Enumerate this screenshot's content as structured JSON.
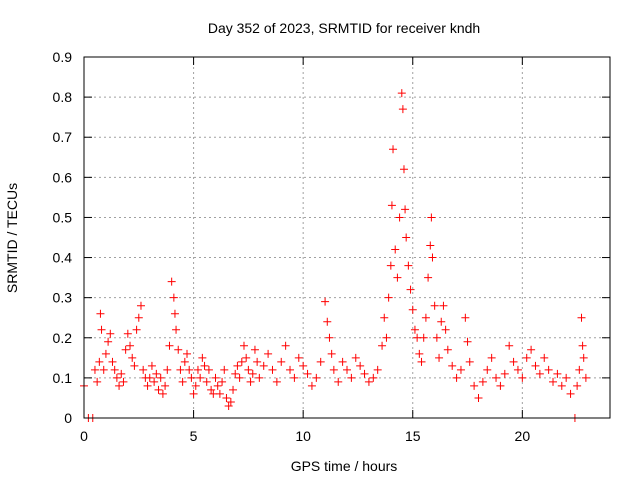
{
  "chart_data": {
    "type": "scatter",
    "title": "Day 352 of 2023, SRMTID for receiver kndh",
    "xlabel": "GPS time / hours",
    "ylabel": "SRMTID / TECUs",
    "xlim": [
      0,
      24
    ],
    "ylim": [
      0,
      0.9
    ],
    "xticks": [
      0,
      5,
      10,
      15,
      20
    ],
    "yticks": [
      0,
      0.1,
      0.2,
      0.3,
      0.4,
      0.5,
      0.6,
      0.7,
      0.8,
      0.9
    ],
    "xtick_labels": [
      "0",
      "5",
      "10",
      "15",
      "20"
    ],
    "ytick_labels": [
      "0",
      "0.1",
      "0.2",
      "0.3",
      "0.4",
      "0.5",
      "0.6",
      "0.7",
      "0.8",
      "0.9"
    ],
    "grid": true,
    "marker": "+",
    "color": "#ff0000",
    "series": [
      {
        "name": "SRMTID",
        "points": [
          [
            0.0,
            0.08
          ],
          [
            0.2,
            0.0
          ],
          [
            0.4,
            0.0
          ],
          [
            0.5,
            0.12
          ],
          [
            0.6,
            0.09
          ],
          [
            0.7,
            0.14
          ],
          [
            0.75,
            0.26
          ],
          [
            0.8,
            0.22
          ],
          [
            0.9,
            0.12
          ],
          [
            1.0,
            0.16
          ],
          [
            1.1,
            0.19
          ],
          [
            1.2,
            0.21
          ],
          [
            1.3,
            0.14
          ],
          [
            1.4,
            0.12
          ],
          [
            1.5,
            0.1
          ],
          [
            1.6,
            0.08
          ],
          [
            1.7,
            0.11
          ],
          [
            1.8,
            0.09
          ],
          [
            1.9,
            0.17
          ],
          [
            2.0,
            0.21
          ],
          [
            2.1,
            0.18
          ],
          [
            2.2,
            0.15
          ],
          [
            2.3,
            0.13
          ],
          [
            2.4,
            0.22
          ],
          [
            2.5,
            0.25
          ],
          [
            2.6,
            0.28
          ],
          [
            2.7,
            0.12
          ],
          [
            2.8,
            0.1
          ],
          [
            2.9,
            0.08
          ],
          [
            3.0,
            0.1
          ],
          [
            3.1,
            0.13
          ],
          [
            3.2,
            0.09
          ],
          [
            3.3,
            0.11
          ],
          [
            3.4,
            0.07
          ],
          [
            3.5,
            0.1
          ],
          [
            3.6,
            0.06
          ],
          [
            3.7,
            0.08
          ],
          [
            3.8,
            0.12
          ],
          [
            3.9,
            0.18
          ],
          [
            4.0,
            0.34
          ],
          [
            4.1,
            0.3
          ],
          [
            4.15,
            0.26
          ],
          [
            4.2,
            0.22
          ],
          [
            4.3,
            0.17
          ],
          [
            4.4,
            0.12
          ],
          [
            4.5,
            0.09
          ],
          [
            4.6,
            0.14
          ],
          [
            4.7,
            0.16
          ],
          [
            4.8,
            0.12
          ],
          [
            4.9,
            0.1
          ],
          [
            5.0,
            0.06
          ],
          [
            5.1,
            0.08
          ],
          [
            5.2,
            0.12
          ],
          [
            5.3,
            0.1
          ],
          [
            5.4,
            0.15
          ],
          [
            5.5,
            0.13
          ],
          [
            5.6,
            0.09
          ],
          [
            5.7,
            0.12
          ],
          [
            5.8,
            0.07
          ],
          [
            5.9,
            0.06
          ],
          [
            6.0,
            0.1
          ],
          [
            6.1,
            0.08
          ],
          [
            6.2,
            0.06
          ],
          [
            6.3,
            0.09
          ],
          [
            6.4,
            0.12
          ],
          [
            6.5,
            0.05
          ],
          [
            6.6,
            0.03
          ],
          [
            6.7,
            0.04
          ],
          [
            6.8,
            0.07
          ],
          [
            6.9,
            0.11
          ],
          [
            7.0,
            0.13
          ],
          [
            7.1,
            0.1
          ],
          [
            7.2,
            0.14
          ],
          [
            7.3,
            0.18
          ],
          [
            7.4,
            0.15
          ],
          [
            7.5,
            0.12
          ],
          [
            7.6,
            0.09
          ],
          [
            7.7,
            0.11
          ],
          [
            7.8,
            0.17
          ],
          [
            7.9,
            0.14
          ],
          [
            8.0,
            0.1
          ],
          [
            8.2,
            0.13
          ],
          [
            8.4,
            0.16
          ],
          [
            8.6,
            0.12
          ],
          [
            8.8,
            0.09
          ],
          [
            9.0,
            0.14
          ],
          [
            9.2,
            0.18
          ],
          [
            9.4,
            0.12
          ],
          [
            9.6,
            0.1
          ],
          [
            9.8,
            0.15
          ],
          [
            10.0,
            0.13
          ],
          [
            10.2,
            0.11
          ],
          [
            10.4,
            0.08
          ],
          [
            10.6,
            0.1
          ],
          [
            10.8,
            0.14
          ],
          [
            11.0,
            0.29
          ],
          [
            11.1,
            0.24
          ],
          [
            11.2,
            0.2
          ],
          [
            11.3,
            0.16
          ],
          [
            11.4,
            0.12
          ],
          [
            11.6,
            0.09
          ],
          [
            11.8,
            0.14
          ],
          [
            12.0,
            0.12
          ],
          [
            12.2,
            0.1
          ],
          [
            12.4,
            0.15
          ],
          [
            12.6,
            0.13
          ],
          [
            12.8,
            0.11
          ],
          [
            13.0,
            0.09
          ],
          [
            13.2,
            0.1
          ],
          [
            13.4,
            0.12
          ],
          [
            13.6,
            0.18
          ],
          [
            13.7,
            0.25
          ],
          [
            13.8,
            0.2
          ],
          [
            13.9,
            0.3
          ],
          [
            14.0,
            0.38
          ],
          [
            14.05,
            0.53
          ],
          [
            14.1,
            0.67
          ],
          [
            14.2,
            0.42
          ],
          [
            14.3,
            0.35
          ],
          [
            14.4,
            0.5
          ],
          [
            14.5,
            0.81
          ],
          [
            14.55,
            0.77
          ],
          [
            14.6,
            0.62
          ],
          [
            14.65,
            0.52
          ],
          [
            14.7,
            0.45
          ],
          [
            14.8,
            0.38
          ],
          [
            14.9,
            0.32
          ],
          [
            15.0,
            0.27
          ],
          [
            15.1,
            0.22
          ],
          [
            15.2,
            0.2
          ],
          [
            15.3,
            0.16
          ],
          [
            15.4,
            0.14
          ],
          [
            15.5,
            0.2
          ],
          [
            15.6,
            0.25
          ],
          [
            15.7,
            0.35
          ],
          [
            15.8,
            0.43
          ],
          [
            15.85,
            0.5
          ],
          [
            15.9,
            0.4
          ],
          [
            16.0,
            0.28
          ],
          [
            16.1,
            0.2
          ],
          [
            16.2,
            0.15
          ],
          [
            16.3,
            0.24
          ],
          [
            16.4,
            0.28
          ],
          [
            16.5,
            0.22
          ],
          [
            16.6,
            0.17
          ],
          [
            16.8,
            0.13
          ],
          [
            17.0,
            0.1
          ],
          [
            17.2,
            0.12
          ],
          [
            17.4,
            0.25
          ],
          [
            17.5,
            0.19
          ],
          [
            17.6,
            0.14
          ],
          [
            17.8,
            0.08
          ],
          [
            18.0,
            0.05
          ],
          [
            18.2,
            0.09
          ],
          [
            18.4,
            0.12
          ],
          [
            18.6,
            0.15
          ],
          [
            18.8,
            0.1
          ],
          [
            19.0,
            0.08
          ],
          [
            19.2,
            0.11
          ],
          [
            19.4,
            0.18
          ],
          [
            19.6,
            0.14
          ],
          [
            19.8,
            0.12
          ],
          [
            20.0,
            0.1
          ],
          [
            20.2,
            0.15
          ],
          [
            20.4,
            0.17
          ],
          [
            20.6,
            0.13
          ],
          [
            20.8,
            0.11
          ],
          [
            21.0,
            0.15
          ],
          [
            21.2,
            0.12
          ],
          [
            21.4,
            0.09
          ],
          [
            21.6,
            0.11
          ],
          [
            21.8,
            0.08
          ],
          [
            22.0,
            0.1
          ],
          [
            22.2,
            0.06
          ],
          [
            22.4,
            0.0
          ],
          [
            22.5,
            0.08
          ],
          [
            22.6,
            0.12
          ],
          [
            22.7,
            0.25
          ],
          [
            22.75,
            0.18
          ],
          [
            22.8,
            0.15
          ],
          [
            22.9,
            0.1
          ]
        ]
      }
    ]
  }
}
